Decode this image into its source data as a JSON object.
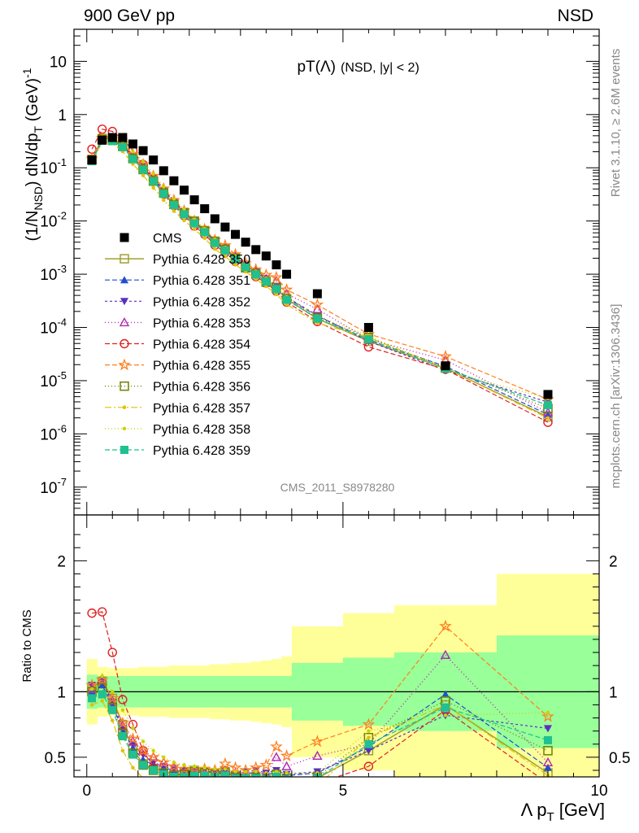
{
  "header": {
    "left": "900 GeV pp",
    "right": "NSD"
  },
  "side_text": {
    "rivet": "Rivet 3.1.10, ≥ 2.6M events",
    "mcplots": "mcplots.cern.ch [arXiv:1306.3436]"
  },
  "watermark": "CMS_2011_S8978280",
  "colors": {
    "band_yellow": "#ffff99",
    "band_green": "#99ff99",
    "cms": "#000000"
  },
  "chart_data": [
    {
      "type": "scatter",
      "panel": "main",
      "title_main": "pT(Λ)",
      "title_sub": "(NSD, |y| < 2)",
      "ylabel": "(1/N_NSD) dN/dp_T (GeV)^-1",
      "yscale": "log",
      "ylim": [
        3e-08,
        40
      ],
      "xlim": [
        -0.25,
        10
      ],
      "ytick_labels": [
        "10",
        "1",
        "10^-1",
        "10^-2",
        "10^-3",
        "10^-4",
        "10^-5",
        "10^-6",
        "10^-7"
      ],
      "legend_position": "left-middle",
      "x": [
        0.1,
        0.3,
        0.5,
        0.7,
        0.9,
        1.1,
        1.3,
        1.5,
        1.7,
        1.9,
        2.1,
        2.3,
        2.5,
        2.7,
        2.9,
        3.1,
        3.3,
        3.5,
        3.7,
        3.9,
        4.5,
        5.5,
        7.0,
        9.0
      ],
      "series": [
        {
          "name": "CMS",
          "style": "data",
          "color": "#000000",
          "marker": "square",
          "values": [
            0.14,
            0.33,
            0.37,
            0.37,
            0.28,
            0.21,
            0.14,
            0.088,
            0.057,
            0.038,
            0.025,
            0.017,
            0.011,
            0.0077,
            0.0056,
            0.004,
            0.0029,
            0.0022,
            0.0015,
            0.001,
            0.00043,
            0.0001,
            1.9e-05,
            5.5e-06
          ]
        },
        {
          "name": "Pythia 6.428 350",
          "color": "#a0a030",
          "marker": "open-square",
          "dash": "",
          "line_width": 1.5,
          "ratio": [
            1.03,
            1.08,
            0.95,
            0.75,
            0.56,
            0.45,
            0.41,
            0.4,
            0.36,
            0.38,
            0.4,
            0.39,
            0.38,
            0.39,
            0.36,
            0.33,
            0.35,
            0.32,
            0.36,
            0.34,
            0.34,
            0.55,
            0.9,
            0.38
          ]
        },
        {
          "name": "Pythia 6.428 351",
          "color": "#1f4fcf",
          "marker": "triangle-up",
          "dash": "6,3",
          "line_width": 1.2,
          "ratio": [
            1.0,
            1.05,
            0.9,
            0.7,
            0.57,
            0.48,
            0.44,
            0.42,
            0.4,
            0.39,
            0.38,
            0.39,
            0.37,
            0.38,
            0.36,
            0.38,
            0.38,
            0.37,
            0.38,
            0.36,
            0.38,
            0.58,
            0.98,
            0.42
          ]
        },
        {
          "name": "Pythia 6.428 352",
          "color": "#5a2fc0",
          "marker": "triangle-down",
          "dash": "3,3",
          "line_width": 1.2,
          "ratio": [
            1.05,
            1.08,
            0.92,
            0.72,
            0.6,
            0.52,
            0.46,
            0.43,
            0.41,
            0.4,
            0.39,
            0.4,
            0.38,
            0.4,
            0.37,
            0.39,
            0.4,
            0.38,
            0.4,
            0.37,
            0.39,
            0.55,
            0.82,
            0.72
          ]
        },
        {
          "name": "Pythia 6.428 353",
          "color": "#b02ab0",
          "marker": "open-triangle-up",
          "dash": "1,3",
          "line_width": 1.4,
          "ratio": [
            1.02,
            1.1,
            0.93,
            0.74,
            0.62,
            0.55,
            0.5,
            0.46,
            0.42,
            0.4,
            0.38,
            0.39,
            0.38,
            0.4,
            0.38,
            0.36,
            0.39,
            0.37,
            0.5,
            0.43,
            0.51,
            0.6,
            1.28,
            0.46
          ]
        },
        {
          "name": "Pythia 6.428 354",
          "color": "#e01f1f",
          "marker": "open-circle",
          "dash": "6,3",
          "line_width": 1.2,
          "ratio": [
            1.6,
            1.61,
            1.3,
            0.94,
            0.75,
            0.55,
            0.42,
            0.36,
            0.34,
            0.33,
            0.32,
            0.33,
            0.32,
            0.33,
            0.31,
            0.32,
            0.31,
            0.31,
            0.32,
            0.3,
            0.3,
            0.43,
            0.86,
            0.3
          ]
        },
        {
          "name": "Pythia 6.428 355",
          "color": "#ff7f1f",
          "marker": "open-star",
          "dash": "6,3",
          "line_width": 1.2,
          "ratio": [
            1.05,
            1.09,
            0.95,
            0.76,
            0.64,
            0.55,
            0.5,
            0.46,
            0.43,
            0.41,
            0.4,
            0.41,
            0.4,
            0.45,
            0.42,
            0.4,
            0.42,
            0.44,
            0.58,
            0.51,
            0.62,
            0.75,
            1.5,
            0.81
          ]
        },
        {
          "name": "Pythia 6.428 356",
          "color": "#708000",
          "marker": "open-square",
          "dash": "1,3",
          "line_width": 1.4,
          "ratio": [
            1.0,
            1.03,
            0.88,
            0.68,
            0.53,
            0.44,
            0.4,
            0.38,
            0.36,
            0.37,
            0.39,
            0.38,
            0.37,
            0.38,
            0.35,
            0.33,
            0.35,
            0.33,
            0.37,
            0.34,
            0.35,
            0.65,
            0.93,
            0.55
          ]
        },
        {
          "name": "Pythia 6.428 357",
          "color": "#e0c000",
          "marker": "dot",
          "dash": "8,3,2,3",
          "line_width": 1.2,
          "ratio": [
            0.9,
            0.93,
            0.78,
            0.55,
            0.42,
            0.34,
            0.3,
            0.28,
            0.27,
            0.27,
            0.28,
            0.28,
            0.27,
            0.28,
            0.27,
            0.28,
            0.28,
            0.27,
            0.28,
            0.27,
            0.28,
            0.65,
            0.9,
            0.36
          ]
        },
        {
          "name": "Pythia 6.428 358",
          "color": "#c8d400",
          "marker": "dot",
          "dash": "1,3",
          "line_width": 1.4,
          "ratio": [
            1.02,
            1.12,
            1.0,
            0.86,
            0.72,
            0.62,
            0.55,
            0.5,
            0.46,
            0.44,
            0.43,
            0.42,
            0.41,
            0.41,
            0.39,
            0.39,
            0.39,
            0.38,
            0.39,
            0.38,
            0.38,
            0.7,
            0.82,
            0.84
          ]
        },
        {
          "name": "Pythia 6.428 359",
          "color": "#20c090",
          "marker": "square",
          "dash": "6,3",
          "line_width": 1.2,
          "ratio": [
            0.95,
            0.98,
            0.86,
            0.66,
            0.52,
            0.44,
            0.4,
            0.37,
            0.35,
            0.35,
            0.36,
            0.36,
            0.35,
            0.36,
            0.34,
            0.34,
            0.34,
            0.33,
            0.35,
            0.33,
            0.34,
            0.6,
            0.88,
            0.63
          ]
        }
      ]
    },
    {
      "type": "scatter",
      "panel": "ratio",
      "ylabel": "Ratio to CMS",
      "xlabel": "Λ p_T [GeV]",
      "ylim": [
        0.35,
        2.35
      ],
      "xlim": [
        -0.25,
        10
      ],
      "yticks": [
        0.5,
        1,
        2
      ],
      "ytick_labels": [
        "0.5",
        "1",
        "2"
      ],
      "xticks": [
        0,
        5,
        10
      ],
      "xtick_labels": [
        "0",
        "5",
        "10"
      ],
      "reference_line": 1,
      "bands": {
        "edges": [
          0,
          0.2,
          0.4,
          0.6,
          0.8,
          1.0,
          1.2,
          1.4,
          1.6,
          1.8,
          2.0,
          2.2,
          2.4,
          2.6,
          2.8,
          3.0,
          3.2,
          3.4,
          3.6,
          3.8,
          4.0,
          5.0,
          6.0,
          8.0,
          10.0
        ],
        "green_halfwidth": [
          0.13,
          0.12,
          0.12,
          0.12,
          0.12,
          0.12,
          0.12,
          0.12,
          0.12,
          0.12,
          0.12,
          0.12,
          0.12,
          0.12,
          0.12,
          0.12,
          0.12,
          0.12,
          0.12,
          0.12,
          0.22,
          0.26,
          0.3,
          0.43
        ],
        "yellow_halfwidth": [
          0.25,
          0.19,
          0.18,
          0.18,
          0.18,
          0.19,
          0.19,
          0.19,
          0.2,
          0.2,
          0.2,
          0.2,
          0.21,
          0.21,
          0.22,
          0.22,
          0.23,
          0.24,
          0.25,
          0.27,
          0.5,
          0.6,
          0.66,
          0.9
        ]
      },
      "series_ref": "main panel series Pythia 6.428 350-359 (ratio values)"
    }
  ]
}
